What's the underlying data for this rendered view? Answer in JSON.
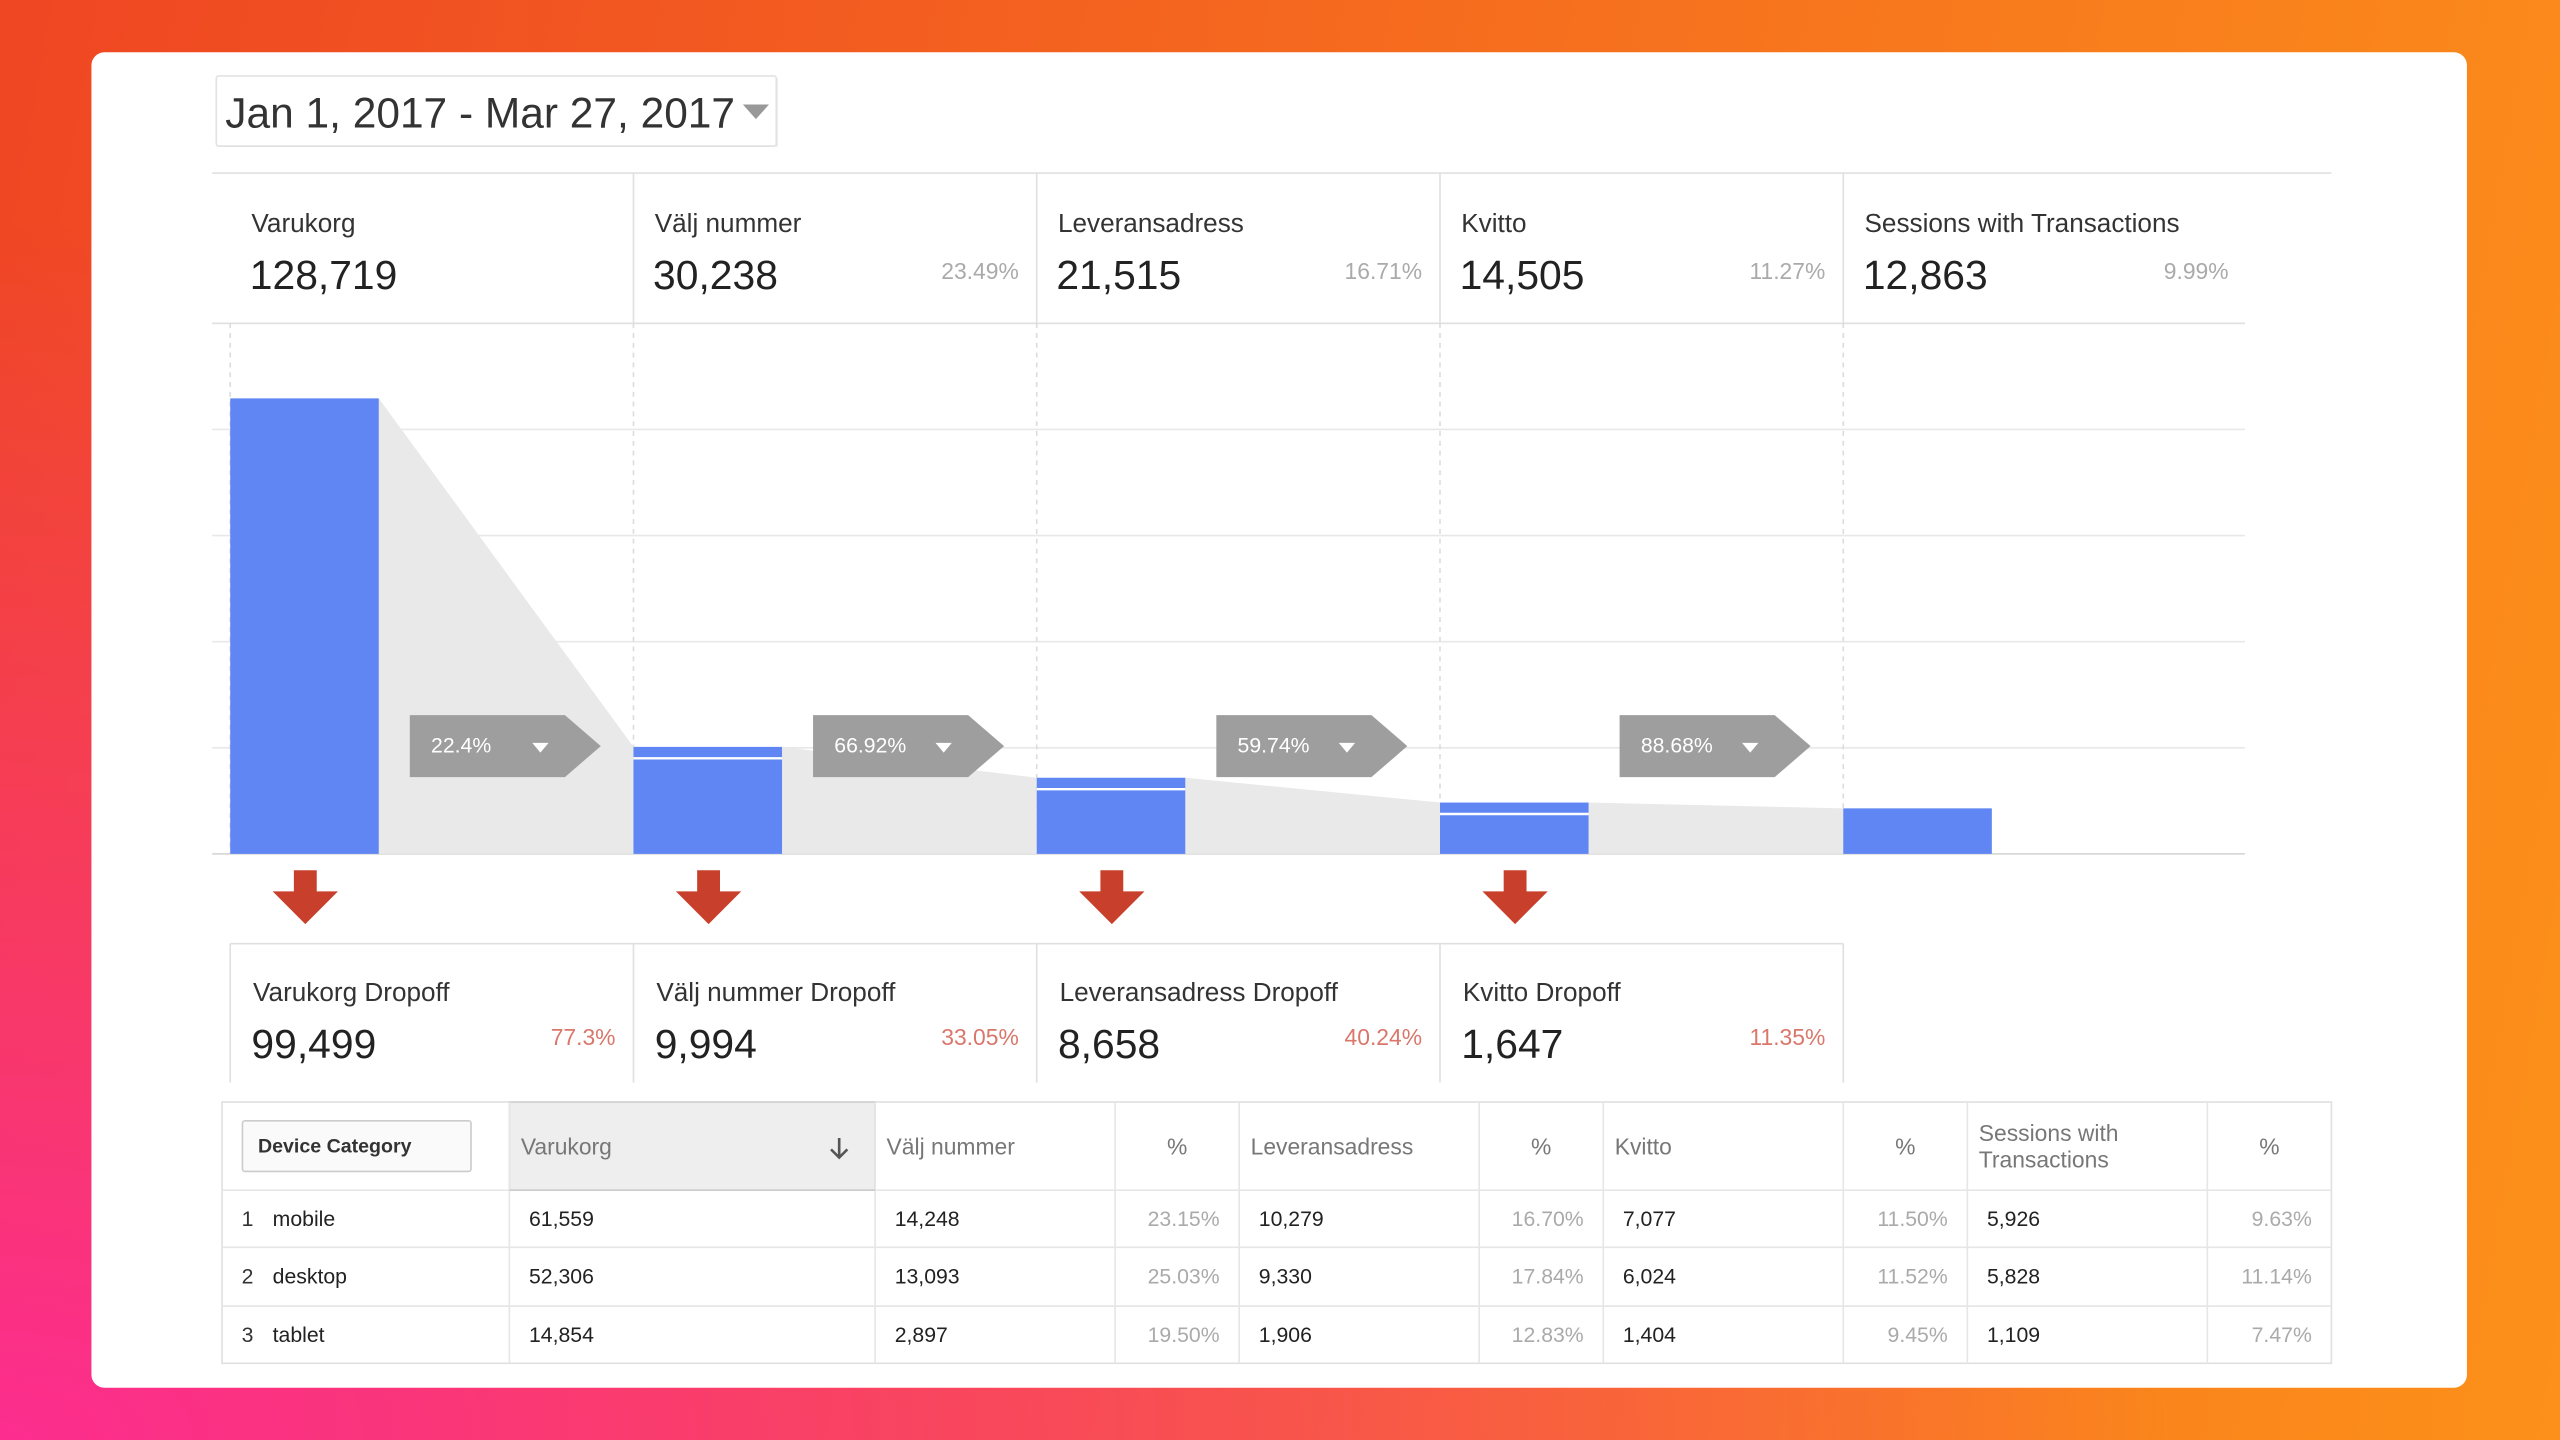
{
  "date_range": "Jan 1, 2017 - Mar 27, 2017",
  "steps": [
    {
      "name": "Varukorg",
      "value": 128719,
      "value_label": "128,719"
    },
    {
      "name": "Välj nummer",
      "value": 30238,
      "value_label": "30,238",
      "percent": "23.49%"
    },
    {
      "name": "Leveransadress",
      "value": 21515,
      "value_label": "21,515",
      "percent": "16.71%"
    },
    {
      "name": "Kvitto",
      "value": 14505,
      "value_label": "14,505",
      "percent": "11.27%"
    },
    {
      "name": "Sessions with Transactions",
      "value": 12863,
      "value_label": "12,863",
      "percent": "9.99%"
    }
  ],
  "conversions": [
    "22.4%",
    "66.92%",
    "59.74%",
    "88.68%"
  ],
  "dropoffs": [
    {
      "name": "Varukorg Dropoff",
      "value": "99,499",
      "percent": "77.3%"
    },
    {
      "name": "Välj nummer Dropoff",
      "value": "9,994",
      "percent": "33.05%"
    },
    {
      "name": "Leveransadress Dropoff",
      "value": "8,658",
      "percent": "40.24%"
    },
    {
      "name": "Kvitto Dropoff",
      "value": "1,647",
      "percent": "11.35%"
    }
  ],
  "table": {
    "header": [
      "Device Category",
      "Varukorg",
      "Välj nummer",
      "%",
      "Leveransadress",
      "%",
      "Kvitto",
      "%",
      "Sessions with Transactions",
      "%"
    ],
    "rows": [
      [
        "1",
        "mobile",
        "61,559",
        "14,248",
        "23.15%",
        "10,279",
        "16.70%",
        "7,077",
        "11.50%",
        "5,926",
        "9.63%"
      ],
      [
        "2",
        "desktop",
        "52,306",
        "13,093",
        "25.03%",
        "9,330",
        "17.84%",
        "6,024",
        "11.52%",
        "5,828",
        "11.14%"
      ],
      [
        "3",
        "tablet",
        "14,854",
        "2,897",
        "19.50%",
        "1,906",
        "12.83%",
        "1,404",
        "9.45%",
        "1,109",
        "7.47%"
      ]
    ]
  }
}
